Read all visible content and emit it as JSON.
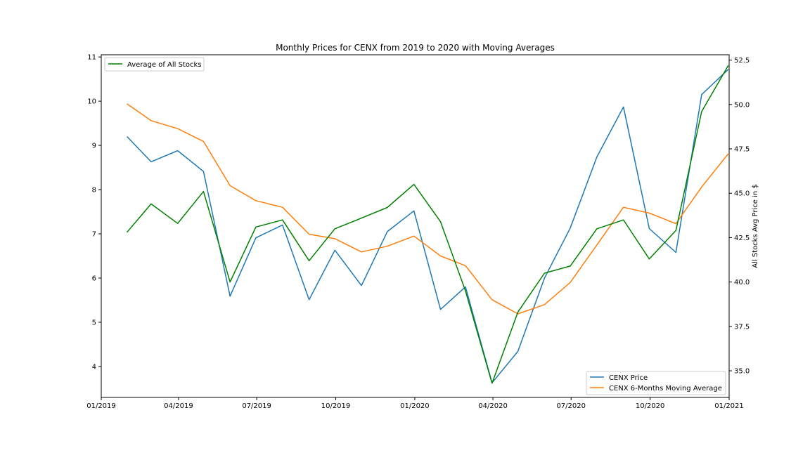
{
  "chart_data": {
    "type": "line",
    "title": "Monthly Prices for CENX from 2019 to 2020 with Moving Averages",
    "xlabel": "",
    "ylabel_left": "",
    "ylabel_right": "All Stocks Avg Price in $",
    "x_ticks": [
      "01/2019",
      "04/2019",
      "07/2019",
      "10/2019",
      "01/2020",
      "04/2020",
      "07/2020",
      "10/2020",
      "01/2021"
    ],
    "x_tick_dates": [
      "2019-01-01",
      "2019-04-01",
      "2019-07-01",
      "2019-10-01",
      "2020-01-01",
      "2020-04-01",
      "2020-07-01",
      "2020-10-01",
      "2021-01-01"
    ],
    "x_range": [
      "2019-01-01",
      "2021-01-01"
    ],
    "y_left_ticks": [
      4,
      5,
      6,
      7,
      8,
      9,
      10,
      11
    ],
    "y_left_range": [
      3.3,
      11.05
    ],
    "y_right_ticks": [
      "35.0",
      "37.5",
      "40.0",
      "42.5",
      "45.0",
      "47.5",
      "50.0",
      "52.5"
    ],
    "y_right_range": [
      33.5,
      52.8
    ],
    "grid": false,
    "x": [
      "2019-01-31",
      "2019-02-28",
      "2019-03-31",
      "2019-04-30",
      "2019-05-31",
      "2019-06-30",
      "2019-07-31",
      "2019-08-31",
      "2019-09-30",
      "2019-10-31",
      "2019-11-30",
      "2019-12-31",
      "2020-01-31",
      "2020-02-29",
      "2020-03-31",
      "2020-04-30",
      "2020-05-31",
      "2020-06-30",
      "2020-07-31",
      "2020-08-31",
      "2020-09-30",
      "2020-10-31",
      "2020-11-30",
      "2020-12-31"
    ],
    "series": [
      {
        "name": "CENX Price",
        "axis": "left",
        "color": "#1f77b4",
        "values": [
          9.2,
          8.63,
          8.88,
          8.41,
          5.59,
          6.91,
          7.2,
          5.51,
          6.63,
          5.83,
          7.05,
          7.52,
          5.29,
          5.8,
          3.63,
          4.34,
          6.0,
          7.13,
          8.74,
          9.87,
          7.12,
          6.58,
          10.15,
          10.72
        ]
      },
      {
        "name": "CENX 6-Months Moving Average",
        "axis": "left",
        "color": "#ff7f0e",
        "values": [
          9.94,
          9.56,
          9.38,
          9.09,
          8.09,
          7.75,
          7.6,
          6.99,
          6.89,
          6.59,
          6.72,
          6.95,
          6.5,
          6.28,
          5.51,
          5.19,
          5.4,
          5.9,
          6.75,
          7.6,
          7.47,
          7.23,
          8.06,
          8.81
        ]
      },
      {
        "name": "Average of All Stocks",
        "axis": "right",
        "color": "#008000",
        "values": [
          42.8,
          44.4,
          43.3,
          45.1,
          40.0,
          43.1,
          43.5,
          41.2,
          43.0,
          43.6,
          44.2,
          45.5,
          43.4,
          39.5,
          34.3,
          38.3,
          40.5,
          40.9,
          43.0,
          43.5,
          41.3,
          42.9,
          49.6,
          52.2
        ]
      }
    ],
    "legend_left": {
      "placement": "top-left",
      "entries": [
        "Average of All Stocks"
      ]
    },
    "legend_right": {
      "placement": "bottom-right",
      "entries": [
        "CENX Price",
        "CENX 6-Months Moving Average"
      ]
    }
  }
}
